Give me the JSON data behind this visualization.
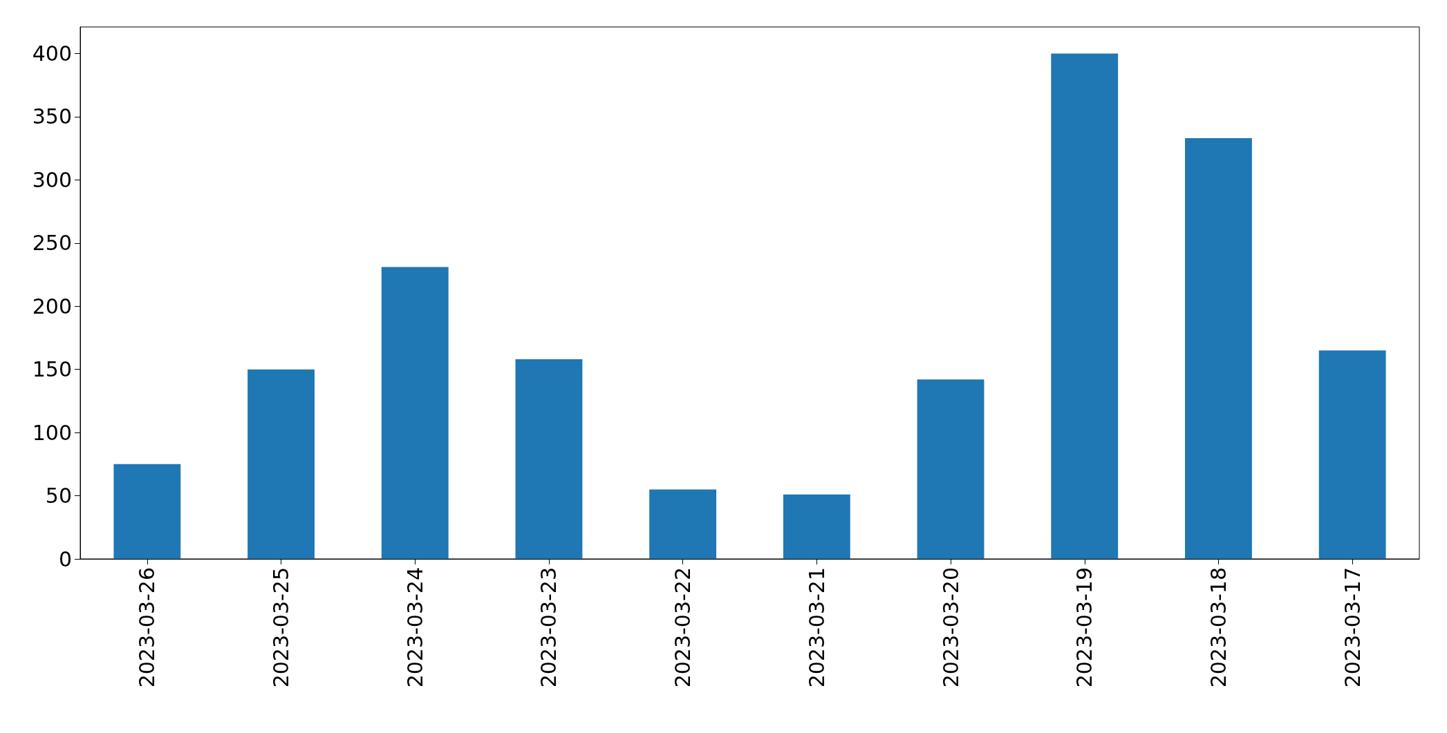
{
  "chart_data": {
    "type": "bar",
    "categories": [
      "2023-03-26",
      "2023-03-25",
      "2023-03-24",
      "2023-03-23",
      "2023-03-22",
      "2023-03-21",
      "2023-03-20",
      "2023-03-19",
      "2023-03-18",
      "2023-03-17"
    ],
    "values": [
      75,
      150,
      231,
      158,
      55,
      51,
      142,
      400,
      333,
      165
    ],
    "color": "#1f77b4",
    "ylim": [
      0,
      421
    ],
    "yticks": [
      0,
      50,
      100,
      150,
      200,
      250,
      300,
      350,
      400
    ],
    "grid": false
  }
}
